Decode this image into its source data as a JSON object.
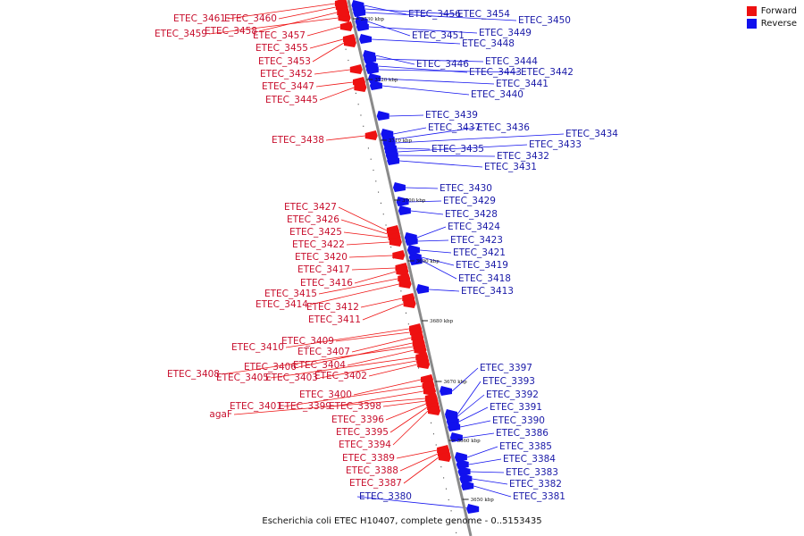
{
  "legend": {
    "items": [
      {
        "label": "Forward",
        "color": "#ee1111"
      },
      {
        "label": "Reverse",
        "color": "#1111ee"
      }
    ]
  },
  "caption": "Escherichia coli ETEC H10407, complete genome - 0..5153435",
  "colors": {
    "forward_label": "#c8102e",
    "reverse_label": "#1a1aa8",
    "forward_gene": "#ee1111",
    "reverse_gene": "#1111ee",
    "backbone": "#888888"
  },
  "ticks": [
    "3730 kbp",
    "3720 kbp",
    "3710 kbp",
    "3700 kbp",
    "3690 kbp",
    "3680 kbp",
    "3670 kbp",
    "3660 kbp",
    "3650 kbp"
  ],
  "forward_genes": [
    "ETEC_3461",
    "ETEC_3460",
    "ETEC_3459",
    "ETEC_3458",
    "ETEC_3457",
    "ETEC_3455",
    "ETEC_3453",
    "ETEC_3452",
    "ETEC_3447",
    "ETEC_3445",
    "ETEC_3438",
    "ETEC_3427",
    "ETEC_3426",
    "ETEC_3425",
    "ETEC_3422",
    "ETEC_3420",
    "ETEC_3417",
    "ETEC_3416",
    "ETEC_3415",
    "ETEC_3414",
    "ETEC_3412",
    "ETEC_3411",
    "ETEC_3410",
    "ETEC_3409",
    "ETEC_3407",
    "ETEC_3408",
    "ETEC_3406",
    "ETEC_3404",
    "ETEC_3405",
    "ETEC_3403",
    "ETEC_3402",
    "ETEC_3400",
    "ETEC_3401",
    "ETEC_3399",
    "agaF",
    "ETEC_3398",
    "ETEC_3396",
    "ETEC_3395",
    "ETEC_3394",
    "ETEC_3389",
    "ETEC_3388",
    "ETEC_3387"
  ],
  "reverse_genes": [
    "ETEC_3456",
    "ETEC_3454",
    "ETEC_3450",
    "ETEC_3451",
    "ETEC_3449",
    "ETEC_3448",
    "ETEC_3446",
    "ETEC_3444",
    "ETEC_3443",
    "ETEC_3442",
    "ETEC_3441",
    "ETEC_3440",
    "ETEC_3439",
    "ETEC_3437",
    "ETEC_3436",
    "ETEC_3434",
    "ETEC_3435",
    "ETEC_3433",
    "ETEC_3432",
    "ETEC_3431",
    "ETEC_3430",
    "ETEC_3429",
    "ETEC_3428",
    "ETEC_3424",
    "ETEC_3423",
    "ETEC_3421",
    "ETEC_3419",
    "ETEC_3418",
    "ETEC_3413",
    "ETEC_3397",
    "ETEC_3393",
    "ETEC_3392",
    "ETEC_3391",
    "ETEC_3390",
    "ETEC_3386",
    "ETEC_3385",
    "ETEC_3384",
    "ETEC_3383",
    "ETEC_3382",
    "ETEC_3381",
    "ETEC_3380"
  ]
}
